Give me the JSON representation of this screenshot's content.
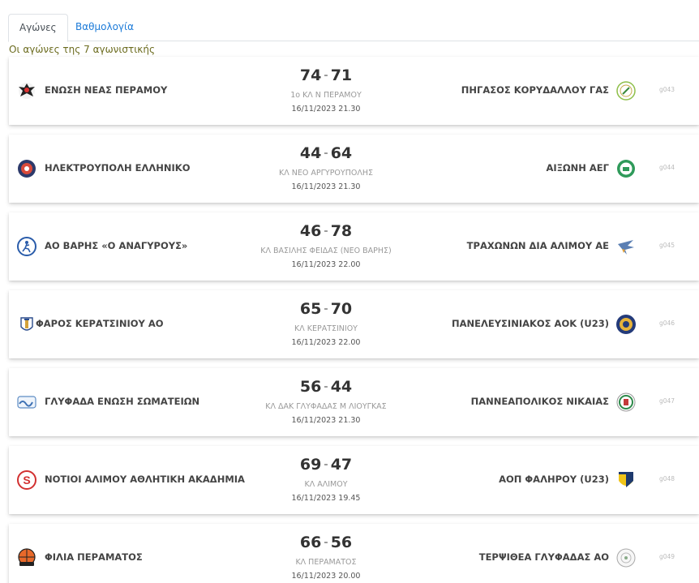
{
  "tabs": {
    "games": "Αγώνες",
    "standings": "Βαθμολογία"
  },
  "round_title": "Οι αγώνες της 7 αγωνιστικής",
  "matches": [
    {
      "home": "ΕΝΩΣΗ ΝΕΑΣ ΠΕΡΑΜΟΥ",
      "home_score": "74",
      "away_score": "71",
      "venue": "1ο ΚΛ Ν ΠΕΡΑΜΟΥ",
      "datetime": "16/11/2023 21.30",
      "away": "ΠΗΓΑΣΟΣ ΚΟΡΥΔΑΛΛΟΥ ΓΑΣ",
      "code": "g043",
      "home_icon": "black-eagle-crest-icon",
      "away_icon": "green-emblem-icon"
    },
    {
      "home": "ΗΛΕΚΤΡΟΥΠΟΛΗ ΕΛΛΗΝΙΚΟ",
      "home_score": "44",
      "away_score": "64",
      "venue": "ΚΛ ΝΕΟ ΑΡΓΥΡΟΥΠΟΛΗΣ",
      "datetime": "16/11/2023 21.30",
      "away": "ΑΙΞΩΝΗ ΑΕΓ",
      "code": "g044",
      "home_icon": "navy-red-crest-icon",
      "away_icon": "green-round-crest-icon"
    },
    {
      "home": "ΑΟ ΒΑΡΗΣ «Ο ΑΝΑΓΥΡΟΥΣ»",
      "home_score": "46",
      "away_score": "78",
      "venue": "ΚΛ ΒΑΣΙΛΗΣ ΦΕΙΔΑΣ (ΝΕΟ ΒΑΡΗΣ)",
      "datetime": "16/11/2023 22.00",
      "away": "ΤΡΑΧΩΝΩΝ ΔΙΑ ΑΛΙΜΟΥ ΑΕ",
      "code": "g045",
      "home_icon": "blue-runner-crest-icon",
      "away_icon": "blue-bird-crest-icon"
    },
    {
      "home": "ΦΑΡΟΣ ΚΕΡΑΤΣΙΝΙΟΥ ΑΟ",
      "home_score": "65",
      "away_score": "70",
      "venue": "ΚΛ ΚΕΡΑΤΣΙΝΙΟΥ",
      "datetime": "16/11/2023 22.00",
      "away": "ΠΑΝΕΛΕΥΣΙΝΙΑΚΟΣ ΑΟΚ (U23)",
      "code": "g046",
      "home_icon": "lighthouse-crest-icon",
      "away_icon": "blue-gold-crest-icon"
    },
    {
      "home": "ΓΛΥΦΑΔΑ ΕΝΩΣΗ ΣΩΜΑΤΕΙΩΝ",
      "home_score": "56",
      "away_score": "44",
      "venue": "ΚΛ ΔΑΚ ΓΛΥΦΑΔΑΣ Μ ΛΙΟΥΓΚΑΣ",
      "datetime": "16/11/2023 21.30",
      "away": "ΠΑΝΝΕΑΠΟΛΙΚΟΣ ΝΙΚΑΙΑΣ",
      "code": "g047",
      "home_icon": "blue-wave-crest-icon",
      "away_icon": "green-red-crest-icon"
    },
    {
      "home": "ΝΟΤΙΟΙ ΑΛΙΜΟΥ ΑΘΛΗΤΙΚΗ ΑΚΑΔΗΜΙΑ",
      "home_score": "69",
      "away_score": "47",
      "venue": "ΚΛ ΑΛΙΜΟΥ",
      "datetime": "16/11/2023 19.45",
      "away": "ΑΟΠ ΦΑΛΗΡΟΥ (U23)",
      "code": "g048",
      "home_icon": "red-s-crest-icon",
      "away_icon": "yellow-navy-shield-icon"
    },
    {
      "home": "ΦΙΛΙΑ ΠΕΡΑΜΑΤΟΣ",
      "home_score": "66",
      "away_score": "56",
      "venue": "ΚΛ ΠΕΡΑΜΑΤΟΣ",
      "datetime": "16/11/2023 20.00",
      "away": "ΤΕΡΨΙΘΕΑ ΓΛΥΦΑΔΑΣ ΑΟ",
      "code": "g049",
      "home_icon": "orange-ball-crest-icon",
      "away_icon": "grey-round-crest-icon"
    }
  ],
  "colors": {
    "tab_link": "#1d7bd8",
    "round_title": "#6b6b1e",
    "team_text": "#444444",
    "venue_text": "#999999"
  }
}
